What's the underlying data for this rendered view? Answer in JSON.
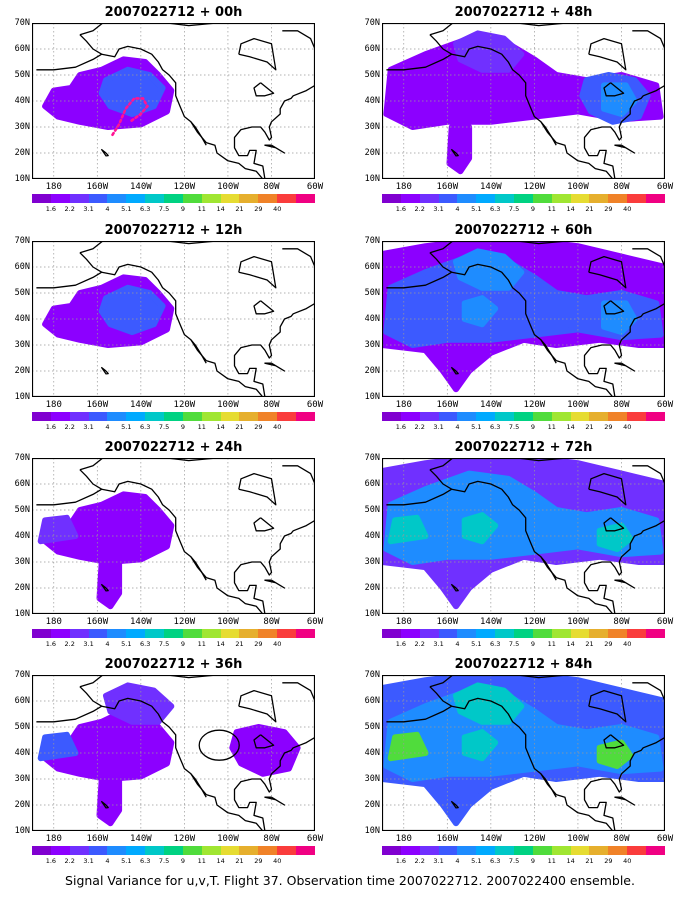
{
  "panels": [
    {
      "title": "2007022712 + 00h",
      "shading": "t00"
    },
    {
      "title": "2007022712 + 48h",
      "shading": "t48"
    },
    {
      "title": "2007022712 + 12h",
      "shading": "t12"
    },
    {
      "title": "2007022712 + 60h",
      "shading": "t60"
    },
    {
      "title": "2007022712 + 24h",
      "shading": "t24"
    },
    {
      "title": "2007022712 + 72h",
      "shading": "t72"
    },
    {
      "title": "2007022712 + 36h",
      "shading": "t36"
    },
    {
      "title": "2007022712 + 84h",
      "shading": "t84"
    }
  ],
  "lat_labels": [
    "70N",
    "60N",
    "50N",
    "40N",
    "30N",
    "20N",
    "10N"
  ],
  "lon_labels": [
    "180",
    "160W",
    "140W",
    "120W",
    "100W",
    "80W",
    "60W"
  ],
  "colorbar": {
    "labels": [
      "1.6",
      "2.2",
      "3.1",
      "4",
      "5.1",
      "6.3",
      "7.5",
      "9",
      "11",
      "14",
      "21",
      "29",
      "40"
    ],
    "colors": [
      "#8000d0",
      "#8c00ff",
      "#7030ff",
      "#3c5aff",
      "#1e8cff",
      "#00aaff",
      "#00c8c8",
      "#00d282",
      "#50dc3c",
      "#a0e632",
      "#e6dc32",
      "#e6af2d",
      "#f08228",
      "#fa3c3c",
      "#f00082"
    ]
  },
  "caption": "Signal Variance for u,v,T. Flight 37. Observation time 2007022712. 2007022400 ensemble.",
  "colors": {
    "level1": "#8c00ff",
    "level2": "#7030ff",
    "level3": "#3c5aff",
    "level4": "#1e8cff",
    "level5": "#00c8c8",
    "level6": "#50dc3c",
    "flight_track": "#ff1493",
    "coast": "#000000",
    "grid": "#999999"
  }
}
